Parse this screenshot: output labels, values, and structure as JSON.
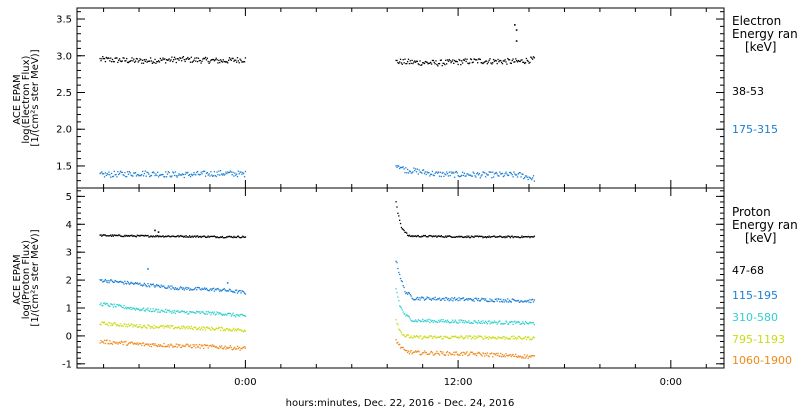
{
  "chart_data": [
    {
      "type": "scatter",
      "ylabel": [
        "ACE EPAM",
        "log(Electron Flux)",
        "[1/(cm²s ster MeV)]"
      ],
      "ylim": [
        1.2,
        3.65
      ],
      "y_ticks": [
        "3.5",
        "3.0",
        "2.5",
        "2.0",
        "1.5"
      ],
      "y_tick_values": [
        3.5,
        3.0,
        2.5,
        2.0,
        1.5
      ],
      "legend_title": [
        "Electron",
        "Energy ran",
        "[keV]"
      ],
      "series": [
        {
          "name": "38-53",
          "color": "#000000",
          "segments": [
            {
              "x": [
                -8.2,
                -5.9,
                -3.6,
                -1.3,
                0.0
              ],
              "values": [
                2.95,
                2.93,
                2.95,
                2.93,
                2.95
              ],
              "jitter": 0.04
            },
            {
              "x": [
                8.5,
                10.8,
                13.1,
                15.4,
                16.3
              ],
              "values": [
                2.92,
                2.9,
                2.93,
                2.92,
                2.95
              ],
              "jitter": 0.04
            }
          ],
          "points": [
            {
              "x": 15.2,
              "value": 3.42
            },
            {
              "x": 15.3,
              "value": 3.35
            },
            {
              "x": 15.3,
              "value": 3.2
            }
          ]
        },
        {
          "name": "175-315",
          "color": "#1a7fd4",
          "segments": [
            {
              "x": [
                -8.2,
                -5.9,
                -3.6,
                -1.3,
                0.0
              ],
              "values": [
                1.38,
                1.4,
                1.38,
                1.4,
                1.39
              ],
              "jitter": 0.04
            },
            {
              "x": [
                8.5,
                9.0,
                10.8,
                13.1,
                15.4,
                16.3
              ],
              "values": [
                1.53,
                1.45,
                1.39,
                1.38,
                1.38,
                1.33
              ],
              "jitter": 0.04
            }
          ]
        }
      ]
    },
    {
      "type": "scatter",
      "ylabel": [
        "ACE EPAM",
        "log(Proton Flux)",
        "[1/(cm²s ster MeV)]"
      ],
      "ylim": [
        -1.15,
        5.3
      ],
      "y_ticks": [
        "5",
        "4",
        "3",
        "2",
        "1",
        "0",
        "-1"
      ],
      "y_tick_values": [
        5,
        4,
        3,
        2,
        1,
        0,
        -1
      ],
      "legend_title": [
        "Proton",
        "Energy ran",
        "[keV]"
      ],
      "series": [
        {
          "name": "47-68",
          "color": "#000000",
          "segments": [
            {
              "x": [
                -8.2,
                -5.9,
                -3.6,
                -1.3,
                0.0
              ],
              "values": [
                3.6,
                3.58,
                3.57,
                3.55,
                3.55
              ],
              "jitter": 0.03
            },
            {
              "x": [
                8.5,
                8.6,
                8.8,
                9.2,
                13.1,
                16.3
              ],
              "values": [
                4.8,
                4.4,
                3.9,
                3.58,
                3.55,
                3.55
              ],
              "jitter": 0.03
            }
          ],
          "points": [
            {
              "x": -5.1,
              "value": 3.78
            },
            {
              "x": -4.9,
              "value": 3.72
            }
          ]
        },
        {
          "name": "115-195",
          "color": "#1a7fd4",
          "segments": [
            {
              "x": [
                -8.2,
                -5.9,
                -3.6,
                -1.3,
                0.0
              ],
              "values": [
                2.0,
                1.85,
                1.7,
                1.65,
                1.55
              ],
              "jitter": 0.06
            },
            {
              "x": [
                8.5,
                8.7,
                9.0,
                9.5,
                13.1,
                16.3
              ],
              "values": [
                2.7,
                2.2,
                1.6,
                1.35,
                1.3,
                1.25
              ],
              "jitter": 0.06
            }
          ],
          "points": [
            {
              "x": -5.5,
              "value": 2.4
            },
            {
              "x": -1.0,
              "value": 1.9
            }
          ]
        },
        {
          "name": "310-580",
          "color": "#2ed0d0",
          "segments": [
            {
              "x": [
                -8.2,
                -5.9,
                -3.6,
                -1.3,
                0.0
              ],
              "values": [
                1.15,
                0.95,
                0.85,
                0.8,
                0.7
              ],
              "jitter": 0.06
            },
            {
              "x": [
                8.5,
                8.7,
                9.0,
                9.5,
                13.1,
                16.3
              ],
              "values": [
                1.7,
                1.1,
                0.75,
                0.55,
                0.5,
                0.45
              ],
              "jitter": 0.06
            }
          ]
        },
        {
          "name": "795-1193",
          "color": "#c8dc12",
          "segments": [
            {
              "x": [
                -8.2,
                -5.9,
                -3.6,
                -1.3,
                0.0
              ],
              "values": [
                0.45,
                0.35,
                0.3,
                0.25,
                0.2
              ],
              "jitter": 0.06
            },
            {
              "x": [
                8.5,
                8.7,
                9.0,
                9.5,
                13.1,
                16.3
              ],
              "values": [
                0.6,
                0.2,
                0.0,
                -0.05,
                -0.05,
                -0.08
              ],
              "jitter": 0.06
            }
          ]
        },
        {
          "name": "1060-1900",
          "color": "#ee8a1a",
          "segments": [
            {
              "x": [
                -8.2,
                -5.9,
                -3.6,
                -1.3,
                0.0
              ],
              "values": [
                -0.2,
                -0.3,
                -0.35,
                -0.4,
                -0.45
              ],
              "jitter": 0.07
            },
            {
              "x": [
                8.5,
                8.7,
                9.0,
                9.5,
                13.1,
                16.3
              ],
              "values": [
                -0.15,
                -0.35,
                -0.55,
                -0.6,
                -0.65,
                -0.75
              ],
              "jitter": 0.07
            }
          ]
        }
      ]
    }
  ],
  "x_axis": {
    "xlim": [
      -9.5,
      27.0
    ],
    "tick_labels": [
      "0:00",
      "12:00",
      "0:00"
    ],
    "tick_values": [
      0,
      12,
      24
    ],
    "minor_step_hours": 2,
    "xlabel": "hours:minutes, Dec. 22, 2016 - Dec. 24, 2016"
  }
}
